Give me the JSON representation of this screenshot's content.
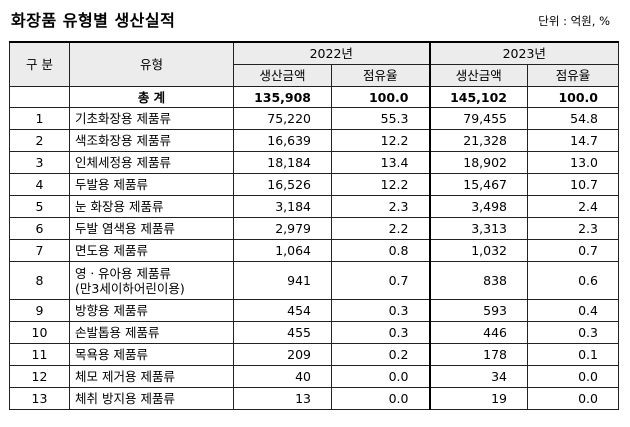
{
  "title": "화장품 유형별 생산실적",
  "unit": "단위 : 억원, %",
  "header": {
    "col_no": "구 분",
    "col_type": "유형",
    "year1": "2022년",
    "year2": "2023년",
    "amount": "생산금액",
    "share": "점유율"
  },
  "total": {
    "label": "총 계",
    "y2022_amount": "135,908",
    "y2022_share": "100.0",
    "y2023_amount": "145,102",
    "y2023_share": "100.0"
  },
  "rows": [
    {
      "no": "1",
      "type": "기초화장용 제품류",
      "a22": "75,220",
      "s22": "55.3",
      "a23": "79,455",
      "s23": "54.8"
    },
    {
      "no": "2",
      "type": "색조화장용 제품류",
      "a22": "16,639",
      "s22": "12.2",
      "a23": "21,328",
      "s23": "14.7"
    },
    {
      "no": "3",
      "type": "인체세정용 제품류",
      "a22": "18,184",
      "s22": "13.4",
      "a23": "18,902",
      "s23": "13.0"
    },
    {
      "no": "4",
      "type": "두발용 제품류",
      "a22": "16,526",
      "s22": "12.2",
      "a23": "15,467",
      "s23": "10.7"
    },
    {
      "no": "5",
      "type": "눈 화장용 제품류",
      "a22": "3,184",
      "s22": "2.3",
      "a23": "3,498",
      "s23": "2.4"
    },
    {
      "no": "6",
      "type": "두발 염색용 제품류",
      "a22": "2,979",
      "s22": "2.2",
      "a23": "3,313",
      "s23": "2.3"
    },
    {
      "no": "7",
      "type": "면도용 제품류",
      "a22": "1,064",
      "s22": "0.8",
      "a23": "1,032",
      "s23": "0.7"
    },
    {
      "no": "8",
      "type": "영ㆍ유아용 제품류",
      "type2": "(만3세이하어린이용)",
      "a22": "941",
      "s22": "0.7",
      "a23": "838",
      "s23": "0.6"
    },
    {
      "no": "9",
      "type": "방향용 제품류",
      "a22": "454",
      "s22": "0.3",
      "a23": "593",
      "s23": "0.4"
    },
    {
      "no": "10",
      "type": "손발톱용 제품류",
      "a22": "455",
      "s22": "0.3",
      "a23": "446",
      "s23": "0.3"
    },
    {
      "no": "11",
      "type": "목욕용 제품류",
      "a22": "209",
      "s22": "0.2",
      "a23": "178",
      "s23": "0.1"
    },
    {
      "no": "12",
      "type": "체모 제거용 제품류",
      "a22": "40",
      "s22": "0.0",
      "a23": "34",
      "s23": "0.0"
    },
    {
      "no": "13",
      "type": "체취 방지용 제품류",
      "a22": "13",
      "s22": "0.0",
      "a23": "19",
      "s23": "0.0"
    }
  ]
}
